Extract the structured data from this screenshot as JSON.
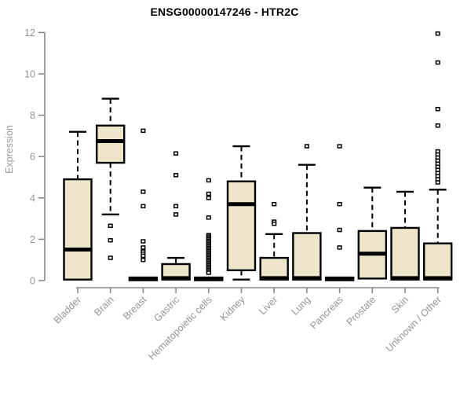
{
  "colors": {
    "box_fill": "#EDE6CB",
    "box_border": "#000000",
    "median": "#000000",
    "axis": "#8a8a8a",
    "tick_label": "#959595",
    "title": "#000000",
    "background": "#ffffff"
  },
  "chart_data": {
    "type": "boxplot",
    "title": "ENSG00000147246 - HTR2C",
    "ylabel": "Expression",
    "xlabel": "",
    "ylim": [
      0,
      12
    ],
    "yticks": [
      0,
      2,
      4,
      6,
      8,
      10,
      12
    ],
    "grid": false,
    "legend": "none",
    "categories": [
      "Bladder",
      "Brain",
      "Breast",
      "Gastric",
      "Hematopoietic cells",
      "Kidney",
      "Liver",
      "Lung",
      "Pancreas",
      "Prostate",
      "Skin",
      "Unknown / Other"
    ],
    "boxes": [
      {
        "category": "Bladder",
        "low": 0.05,
        "q1": 0.05,
        "median": 1.5,
        "q3": 4.9,
        "high": 7.2,
        "outliers": []
      },
      {
        "category": "Brain",
        "low": 3.2,
        "q1": 5.7,
        "median": 6.75,
        "q3": 7.5,
        "high": 8.8,
        "outliers": [
          2.65,
          1.95,
          1.1
        ]
      },
      {
        "category": "Breast",
        "low": 0.02,
        "q1": 0.02,
        "median": 0.07,
        "q3": 0.15,
        "high": 0.15,
        "outliers": [
          7.25,
          4.3,
          3.6,
          1.9,
          1.6,
          1.4,
          1.3,
          1.2,
          1.0
        ]
      },
      {
        "category": "Gastric",
        "low": 0.02,
        "q1": 0.05,
        "median": 0.12,
        "q3": 0.8,
        "high": 1.1,
        "outliers": [
          6.15,
          5.1,
          3.6,
          3.2
        ]
      },
      {
        "category": "Hematopoietic cells",
        "low": 0.02,
        "q1": 0.02,
        "median": 0.07,
        "q3": 0.15,
        "high": 0.15,
        "outliers": [
          4.85,
          4.2,
          4.0,
          3.05,
          2.2,
          2.13,
          2.06,
          1.99,
          1.92,
          1.85,
          1.78,
          1.71,
          1.64,
          1.57,
          1.5,
          1.43,
          1.36,
          1.29,
          1.22,
          1.15,
          1.08,
          1.01,
          0.94,
          0.87,
          0.8,
          0.73,
          0.66,
          0.59,
          0.52,
          0.45,
          0.38
        ]
      },
      {
        "category": "Kidney",
        "low": 0.05,
        "q1": 0.5,
        "median": 3.7,
        "q3": 4.8,
        "high": 6.5,
        "outliers": []
      },
      {
        "category": "Liver",
        "low": 0.02,
        "q1": 0.05,
        "median": 0.12,
        "q3": 1.1,
        "high": 2.25,
        "outliers": [
          3.7,
          2.85,
          2.75
        ]
      },
      {
        "category": "Lung",
        "low": 0.02,
        "q1": 0.05,
        "median": 0.12,
        "q3": 2.3,
        "high": 5.6,
        "outliers": [
          6.5
        ]
      },
      {
        "category": "Pancreas",
        "low": 0.02,
        "q1": 0.02,
        "median": 0.07,
        "q3": 0.15,
        "high": 0.15,
        "outliers": [
          6.5,
          3.7,
          2.45,
          1.6
        ]
      },
      {
        "category": "Prostate",
        "low": 0.1,
        "q1": 0.1,
        "median": 1.3,
        "q3": 2.4,
        "high": 4.5,
        "outliers": []
      },
      {
        "category": "Skin",
        "low": 0.02,
        "q1": 0.05,
        "median": 0.12,
        "q3": 2.55,
        "high": 4.3,
        "outliers": []
      },
      {
        "category": "Unknown / Other",
        "low": 0.02,
        "q1": 0.05,
        "median": 0.12,
        "q3": 1.8,
        "high": 4.4,
        "outliers": [
          11.95,
          10.55,
          8.3,
          7.5,
          6.25,
          6.1,
          5.95,
          5.8,
          5.65,
          5.5,
          5.35,
          5.2,
          5.05,
          4.9,
          4.75
        ]
      }
    ]
  }
}
